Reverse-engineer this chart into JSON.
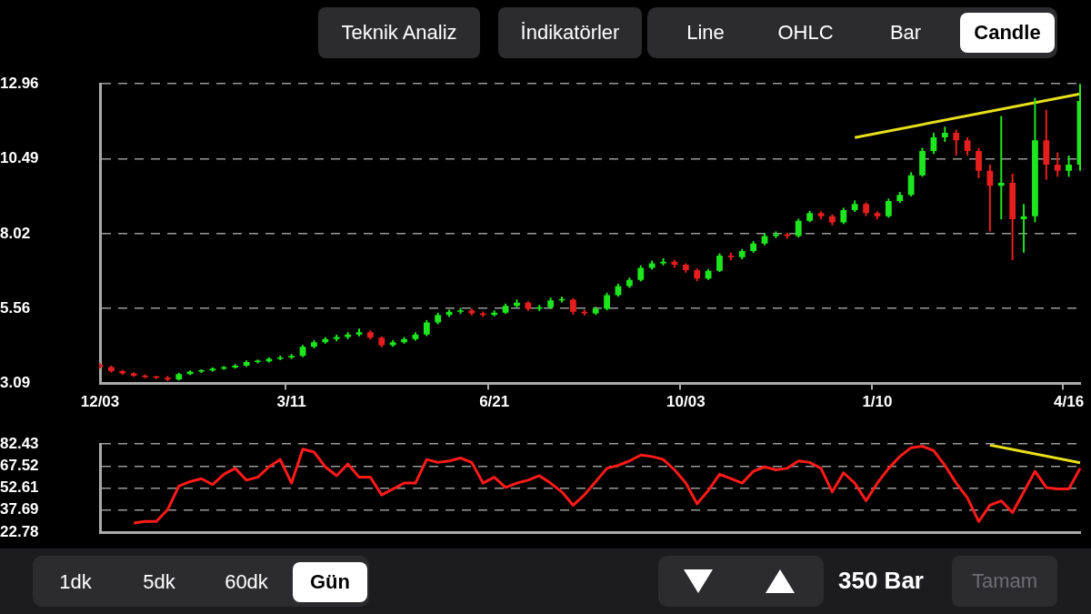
{
  "chart_data": [
    {
      "type": "candlestick",
      "categories": [
        "12/03",
        null,
        null,
        null,
        null,
        null,
        null,
        null,
        null,
        null,
        null,
        null,
        null,
        null,
        null,
        null,
        null,
        "3/11",
        null,
        null,
        null,
        null,
        null,
        null,
        null,
        null,
        null,
        null,
        null,
        null,
        null,
        null,
        null,
        null,
        null,
        "6/21",
        null,
        null,
        null,
        null,
        null,
        null,
        null,
        null,
        null,
        null,
        null,
        null,
        null,
        null,
        null,
        null,
        "10/03",
        null,
        null,
        null,
        null,
        null,
        null,
        null,
        null,
        null,
        null,
        null,
        null,
        null,
        null,
        null,
        null,
        "1/10",
        null,
        null,
        null,
        null,
        null,
        null,
        null,
        null,
        null,
        null,
        null,
        null,
        null,
        null,
        null,
        null,
        "4/16",
        null
      ],
      "ohlc": [
        [
          3.7,
          3.76,
          3.58,
          3.63
        ],
        [
          3.63,
          3.68,
          3.45,
          3.5
        ],
        [
          3.5,
          3.54,
          3.38,
          3.42
        ],
        [
          3.42,
          3.46,
          3.31,
          3.35
        ],
        [
          3.35,
          3.39,
          3.26,
          3.3
        ],
        [
          3.3,
          3.34,
          3.24,
          3.28
        ],
        [
          3.28,
          3.34,
          3.17,
          3.22
        ],
        [
          3.22,
          3.44,
          3.19,
          3.4
        ],
        [
          3.4,
          3.52,
          3.37,
          3.48
        ],
        [
          3.48,
          3.56,
          3.44,
          3.52
        ],
        [
          3.52,
          3.62,
          3.48,
          3.58
        ],
        [
          3.58,
          3.67,
          3.54,
          3.62
        ],
        [
          3.62,
          3.73,
          3.58,
          3.68
        ],
        [
          3.68,
          3.85,
          3.64,
          3.8
        ],
        [
          3.8,
          3.88,
          3.75,
          3.82
        ],
        [
          3.82,
          3.95,
          3.78,
          3.9
        ],
        [
          3.9,
          4.01,
          3.86,
          3.95
        ],
        [
          3.95,
          4.06,
          3.9,
          4.0
        ],
        [
          4.0,
          4.36,
          3.96,
          4.3
        ],
        [
          4.3,
          4.52,
          4.25,
          4.45
        ],
        [
          4.45,
          4.62,
          4.4,
          4.55
        ],
        [
          4.55,
          4.7,
          4.48,
          4.62
        ],
        [
          4.62,
          4.78,
          4.55,
          4.7
        ],
        [
          4.7,
          4.9,
          4.64,
          4.78
        ],
        [
          4.78,
          4.84,
          4.54,
          4.6
        ],
        [
          4.6,
          4.64,
          4.28,
          4.35
        ],
        [
          4.35,
          4.52,
          4.3,
          4.45
        ],
        [
          4.45,
          4.62,
          4.4,
          4.55
        ],
        [
          4.55,
          4.78,
          4.5,
          4.7
        ],
        [
          4.7,
          5.18,
          4.65,
          5.1
        ],
        [
          5.1,
          5.42,
          5.04,
          5.35
        ],
        [
          5.35,
          5.52,
          5.28,
          5.45
        ],
        [
          5.45,
          5.58,
          5.38,
          5.5
        ],
        [
          5.5,
          5.56,
          5.33,
          5.4
        ],
        [
          5.4,
          5.46,
          5.28,
          5.35
        ],
        [
          5.35,
          5.5,
          5.3,
          5.42
        ],
        [
          5.42,
          5.72,
          5.38,
          5.65
        ],
        [
          5.65,
          5.86,
          5.6,
          5.75
        ],
        [
          5.75,
          5.8,
          5.48,
          5.55
        ],
        [
          5.55,
          5.68,
          5.48,
          5.6
        ],
        [
          5.6,
          5.92,
          5.55,
          5.83
        ],
        [
          5.83,
          5.95,
          5.76,
          5.85
        ],
        [
          5.85,
          5.9,
          5.36,
          5.45
        ],
        [
          5.45,
          5.52,
          5.33,
          5.4
        ],
        [
          5.4,
          5.62,
          5.35,
          5.55
        ],
        [
          5.55,
          6.08,
          5.5,
          6.0
        ],
        [
          6.0,
          6.38,
          5.95,
          6.3
        ],
        [
          6.3,
          6.58,
          6.24,
          6.5
        ],
        [
          6.5,
          6.98,
          6.45,
          6.9
        ],
        [
          6.9,
          7.14,
          6.84,
          7.05
        ],
        [
          7.05,
          7.22,
          6.98,
          7.1
        ],
        [
          7.1,
          7.16,
          6.9,
          7.0
        ],
        [
          7.0,
          7.05,
          6.74,
          6.82
        ],
        [
          6.82,
          6.88,
          6.46,
          6.55
        ],
        [
          6.55,
          6.86,
          6.5,
          6.8
        ],
        [
          6.8,
          7.38,
          6.76,
          7.3
        ],
        [
          7.3,
          7.4,
          7.15,
          7.25
        ],
        [
          7.25,
          7.52,
          7.18,
          7.45
        ],
        [
          7.45,
          7.78,
          7.4,
          7.7
        ],
        [
          7.7,
          8.04,
          7.64,
          7.95
        ],
        [
          7.95,
          8.1,
          7.88,
          8.0
        ],
        [
          8.0,
          8.06,
          7.86,
          7.95
        ],
        [
          7.95,
          8.52,
          7.9,
          8.45
        ],
        [
          8.45,
          8.78,
          8.4,
          8.7
        ],
        [
          8.7,
          8.76,
          8.5,
          8.6
        ],
        [
          8.6,
          8.66,
          8.3,
          8.4
        ],
        [
          8.4,
          8.88,
          8.34,
          8.8
        ],
        [
          8.8,
          9.12,
          8.74,
          9.0
        ],
        [
          9.0,
          9.06,
          8.6,
          8.7
        ],
        [
          8.7,
          8.76,
          8.5,
          8.6
        ],
        [
          8.6,
          9.18,
          8.55,
          9.1
        ],
        [
          9.1,
          9.4,
          9.04,
          9.3
        ],
        [
          9.3,
          10.05,
          9.25,
          9.95
        ],
        [
          9.95,
          10.85,
          9.9,
          10.75
        ],
        [
          10.75,
          11.35,
          10.65,
          11.2
        ],
        [
          11.2,
          11.55,
          11.05,
          11.35
        ],
        [
          11.35,
          11.45,
          10.6,
          11.1
        ],
        [
          11.1,
          11.2,
          10.6,
          10.75
        ],
        [
          10.75,
          10.85,
          9.85,
          10.1
        ],
        [
          10.1,
          10.3,
          8.1,
          9.6
        ],
        [
          9.6,
          11.9,
          8.5,
          9.7
        ],
        [
          9.7,
          10.0,
          7.15,
          8.5
        ],
        [
          8.5,
          9.0,
          7.4,
          8.6
        ],
        [
          8.6,
          12.5,
          8.4,
          11.1
        ],
        [
          11.1,
          12.1,
          9.8,
          10.3
        ],
        [
          10.3,
          10.7,
          9.9,
          10.1
        ],
        [
          10.1,
          10.6,
          9.9,
          10.3
        ],
        [
          10.3,
          12.96,
          10.1,
          12.4
        ]
      ],
      "colors": [
        "#e61e1e",
        "#e61e1e",
        "#e61e1e",
        "#e61e1e",
        "#e61e1e",
        "#e61e1e",
        "#e61e1e",
        "#1ee61e",
        "#1ee61e",
        "#1ee61e",
        "#1ee61e",
        "#1ee61e",
        "#1ee61e",
        "#1ee61e",
        "#1ee61e",
        "#1ee61e",
        "#1ee61e",
        "#1ee61e",
        "#1ee61e",
        "#1ee61e",
        "#1ee61e",
        "#1ee61e",
        "#1ee61e",
        "#1ee61e",
        "#e61e1e",
        "#e61e1e",
        "#1ee61e",
        "#1ee61e",
        "#1ee61e",
        "#1ee61e",
        "#1ee61e",
        "#1ee61e",
        "#1ee61e",
        "#e61e1e",
        "#e61e1e",
        "#1ee61e",
        "#1ee61e",
        "#1ee61e",
        "#e61e1e",
        "#1ee61e",
        "#1ee61e",
        "#1ee61e",
        "#e61e1e",
        "#e61e1e",
        "#1ee61e",
        "#1ee61e",
        "#1ee61e",
        "#1ee61e",
        "#1ee61e",
        "#1ee61e",
        "#1ee61e",
        "#e61e1e",
        "#e61e1e",
        "#e61e1e",
        "#1ee61e",
        "#1ee61e",
        "#e61e1e",
        "#1ee61e",
        "#1ee61e",
        "#1ee61e",
        "#1ee61e",
        "#e61e1e",
        "#1ee61e",
        "#1ee61e",
        "#e61e1e",
        "#e61e1e",
        "#1ee61e",
        "#1ee61e",
        "#e61e1e",
        "#e61e1e",
        "#1ee61e",
        "#1ee61e",
        "#1ee61e",
        "#1ee61e",
        "#1ee61e",
        "#1ee61e",
        "#e61e1e",
        "#e61e1e",
        "#e61e1e",
        "#e61e1e",
        "#1ee61e",
        "#e61e1e",
        "#1ee61e",
        "#1ee61e",
        "#e61e1e",
        "#e61e1e",
        "#1ee61e",
        "#1ee61e"
      ],
      "series": [
        {
          "type": "line",
          "color": "#e8e01c",
          "values": [
            null,
            null,
            null,
            null,
            null,
            null,
            null,
            null,
            null,
            null,
            null,
            null,
            null,
            null,
            null,
            null,
            null,
            null,
            null,
            null,
            null,
            null,
            null,
            null,
            null,
            null,
            null,
            null,
            null,
            null,
            null,
            null,
            null,
            null,
            null,
            null,
            null,
            null,
            null,
            null,
            null,
            null,
            null,
            null,
            null,
            null,
            null,
            null,
            null,
            null,
            null,
            null,
            null,
            null,
            null,
            null,
            null,
            null,
            null,
            null,
            null,
            null,
            null,
            null,
            null,
            null,
            null,
            11.19,
            null,
            null,
            null,
            null,
            null,
            null,
            null,
            null,
            null,
            null,
            null,
            null,
            null,
            null,
            null,
            null,
            null,
            null,
            null,
            12.63
          ]
        }
      ],
      "ylim": [
        3.09,
        12.96
      ],
      "yticks": [
        3.09,
        5.56,
        8.02,
        10.49,
        12.96
      ],
      "grid": "y",
      "marker": "none",
      "annotations": [
        "Teknik Analiz",
        "İndikatörler",
        "Line",
        "OHLC",
        "Bar",
        "Candle"
      ]
    },
    {
      "type": "line",
      "categories": [
        null,
        null,
        null,
        null,
        null,
        null,
        null,
        null,
        null,
        null,
        null,
        null,
        null,
        null,
        null,
        null,
        null,
        null,
        null,
        null,
        null,
        null,
        null,
        null,
        null,
        null,
        null,
        null,
        null,
        null,
        null,
        null,
        null,
        null,
        null,
        null,
        null,
        null,
        null,
        null,
        null,
        null,
        null,
        null,
        null,
        null,
        null,
        null,
        null,
        null,
        null,
        null,
        null,
        null,
        null,
        null,
        null,
        null,
        null,
        null,
        null,
        null,
        null,
        null,
        null,
        null,
        null,
        null,
        null,
        null,
        null,
        null,
        null,
        null,
        null,
        null,
        null,
        null,
        null,
        null,
        null,
        null,
        null,
        null,
        null,
        null,
        null,
        null
      ],
      "series": [
        {
          "color": "#ff1a1a",
          "values": [
            null,
            null,
            null,
            29,
            30,
            30,
            38,
            54,
            57,
            59,
            55,
            62,
            66,
            58,
            60,
            67,
            72,
            56,
            79,
            77,
            67,
            61,
            69,
            60,
            60,
            48,
            52,
            56,
            56,
            72,
            70,
            71,
            73,
            70,
            56,
            60,
            53,
            56,
            58,
            61,
            56,
            50,
            41,
            48,
            57,
            66,
            68,
            71,
            75,
            74,
            72,
            65,
            56,
            42,
            51,
            62,
            59,
            56,
            64,
            67,
            65,
            66,
            71,
            70,
            66,
            50,
            63,
            56,
            44,
            56,
            66,
            74,
            80,
            81,
            78,
            68,
            56,
            46,
            30,
            41,
            44,
            36,
            50,
            64,
            53,
            52,
            52,
            66
          ]
        },
        {
          "color": "#e8e01c",
          "values": [
            null,
            null,
            null,
            null,
            null,
            null,
            null,
            null,
            null,
            null,
            null,
            null,
            null,
            null,
            null,
            null,
            null,
            null,
            null,
            null,
            null,
            null,
            null,
            null,
            null,
            null,
            null,
            null,
            null,
            null,
            null,
            null,
            null,
            null,
            null,
            null,
            null,
            null,
            null,
            null,
            null,
            null,
            null,
            null,
            null,
            null,
            null,
            null,
            null,
            null,
            null,
            null,
            null,
            null,
            null,
            null,
            null,
            null,
            null,
            null,
            null,
            null,
            null,
            null,
            null,
            null,
            null,
            null,
            null,
            null,
            null,
            null,
            null,
            null,
            null,
            null,
            null,
            null,
            null,
            81.8,
            null,
            null,
            null,
            null,
            null,
            null,
            null,
            69.8
          ]
        }
      ],
      "ylim": [
        22.78,
        82.43
      ],
      "yticks": [
        22.78,
        37.69,
        52.61,
        67.52,
        82.43
      ],
      "grid": "y",
      "tick_labels": "y",
      "marker": "none",
      "annotations": [
        "1dk",
        "5dk",
        "60dk",
        "Gün",
        "350 Bar",
        "Tamam"
      ]
    }
  ]
}
